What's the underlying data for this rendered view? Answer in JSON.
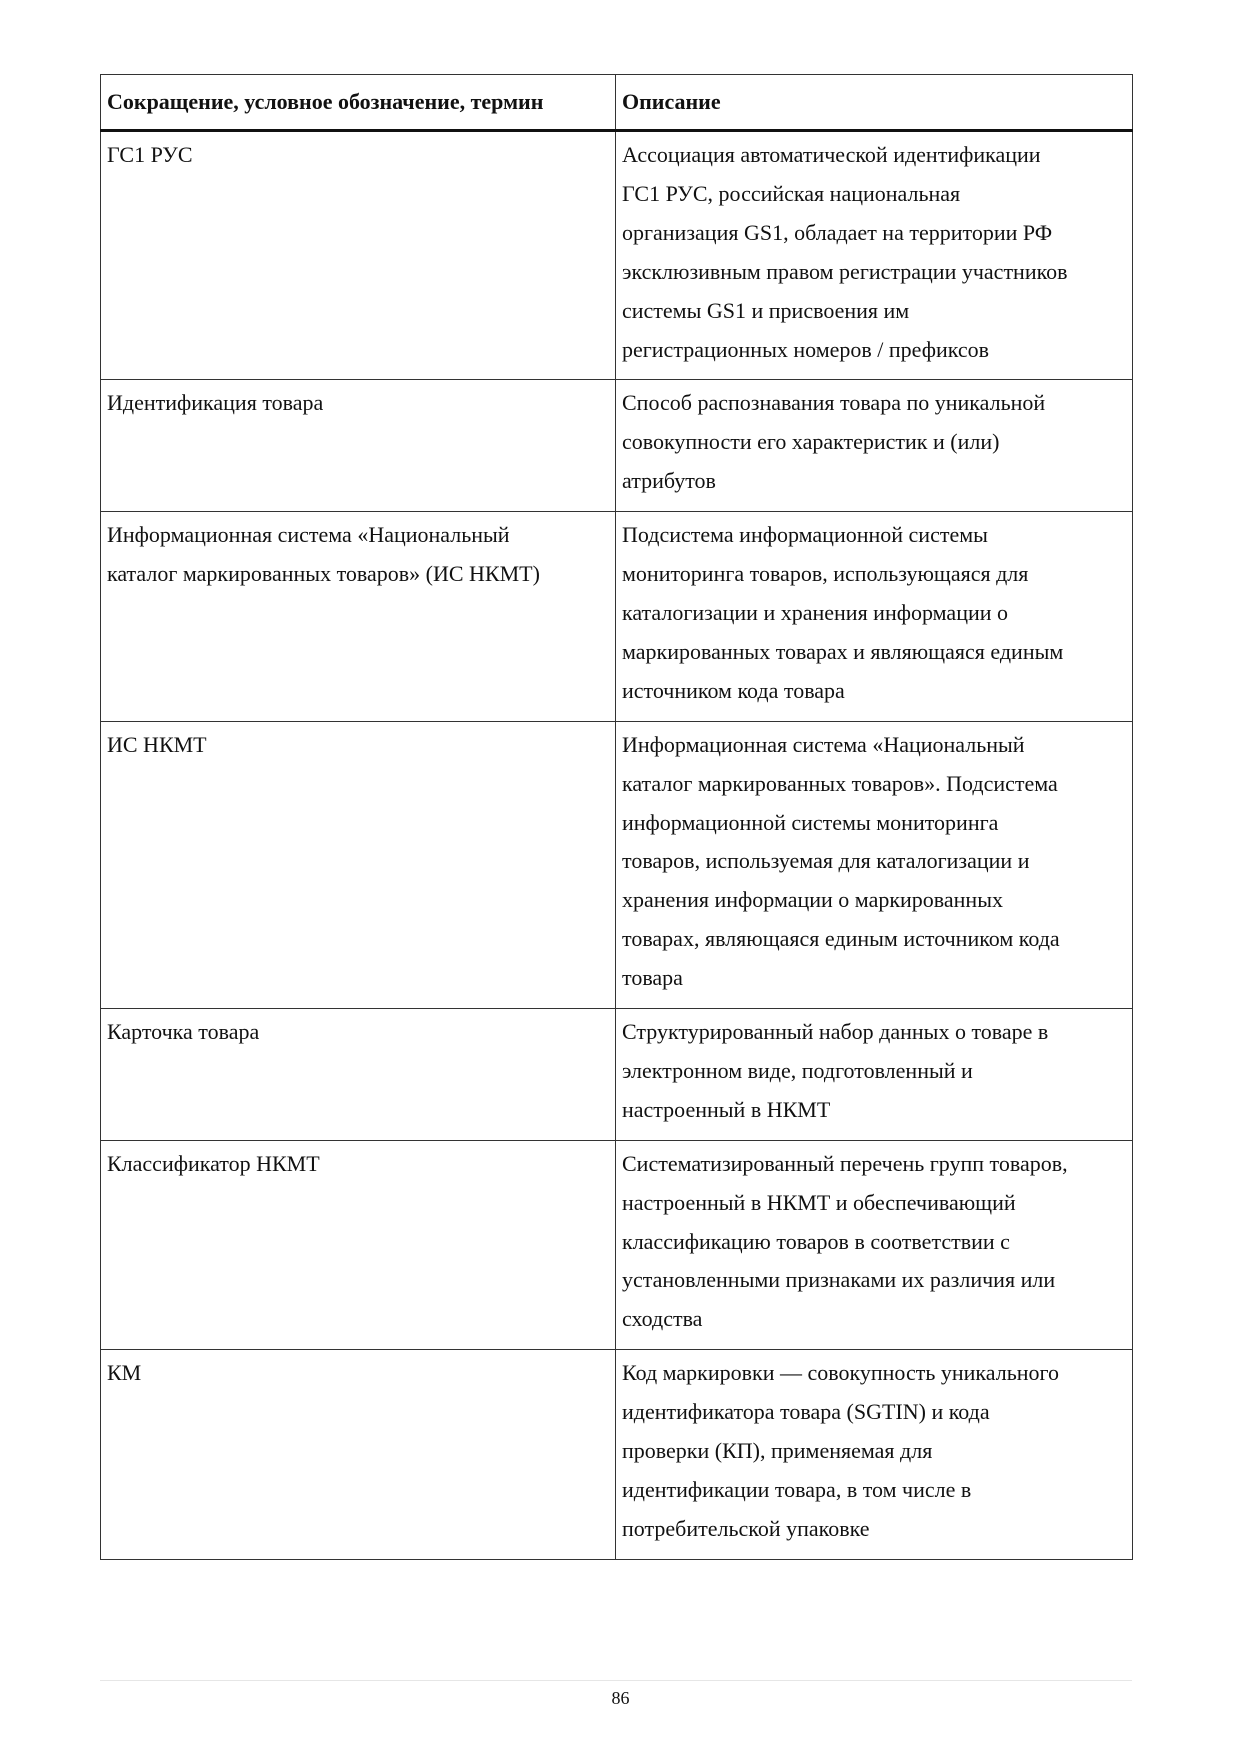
{
  "table": {
    "headers": [
      "Сокращение, условное обозначение, термин",
      "Описание"
    ],
    "rows": [
      {
        "term": [
          "ГС1 РУС"
        ],
        "description": [
          "Ассоциация автоматической идентификации",
          "ГС1 РУС, российская национальная",
          "организация GS1, обладает на территории РФ",
          "эксклюзивным правом регистрации участников",
          "системы GS1 и присвоения им",
          "регистрационных номеров / префиксов"
        ]
      },
      {
        "term": [
          "Идентификация товара"
        ],
        "description": [
          "Способ распознавания товара по уникальной",
          "совокупности его характеристик и (или)",
          "атрибутов"
        ]
      },
      {
        "term": [
          "Информационная система «Национальный",
          "каталог маркированных товаров» (ИС НКМТ)"
        ],
        "description": [
          "Подсистема информационной системы",
          "мониторинга товаров, использующаяся для",
          "каталогизации и хранения информации о",
          "маркированных товарах и являющаяся единым",
          "источником кода товара"
        ]
      },
      {
        "term": [
          "ИС НКМТ"
        ],
        "description": [
          "Информационная система «Национальный",
          "каталог маркированных товаров». Подсистема",
          "информационной системы мониторинга",
          "товаров, используемая для каталогизации и",
          "хранения информации о маркированных",
          "товарах, являющаяся единым источником кода",
          "товара"
        ]
      },
      {
        "term": [
          "Карточка товара"
        ],
        "description": [
          "Структурированный набор данных о товаре в",
          "электронном виде, подготовленный и",
          "настроенный в НКМТ"
        ]
      },
      {
        "term": [
          "Классификатор НКМТ"
        ],
        "description": [
          "Систематизированный перечень групп товаров,",
          "настроенный в НКМТ и обеспечивающий",
          "классификацию товаров в соответствии с",
          "установленными признаками их различия или",
          "сходства"
        ]
      },
      {
        "term": [
          "КМ"
        ],
        "description": [
          "Код маркировки — совокупность уникального",
          "идентификатора товара (SGTIN) и кода",
          "проверки (КП), применяемая для",
          "идентификации товара, в том числе в",
          "потребительской упаковке"
        ]
      }
    ]
  },
  "footer": {
    "page_number": "86"
  }
}
